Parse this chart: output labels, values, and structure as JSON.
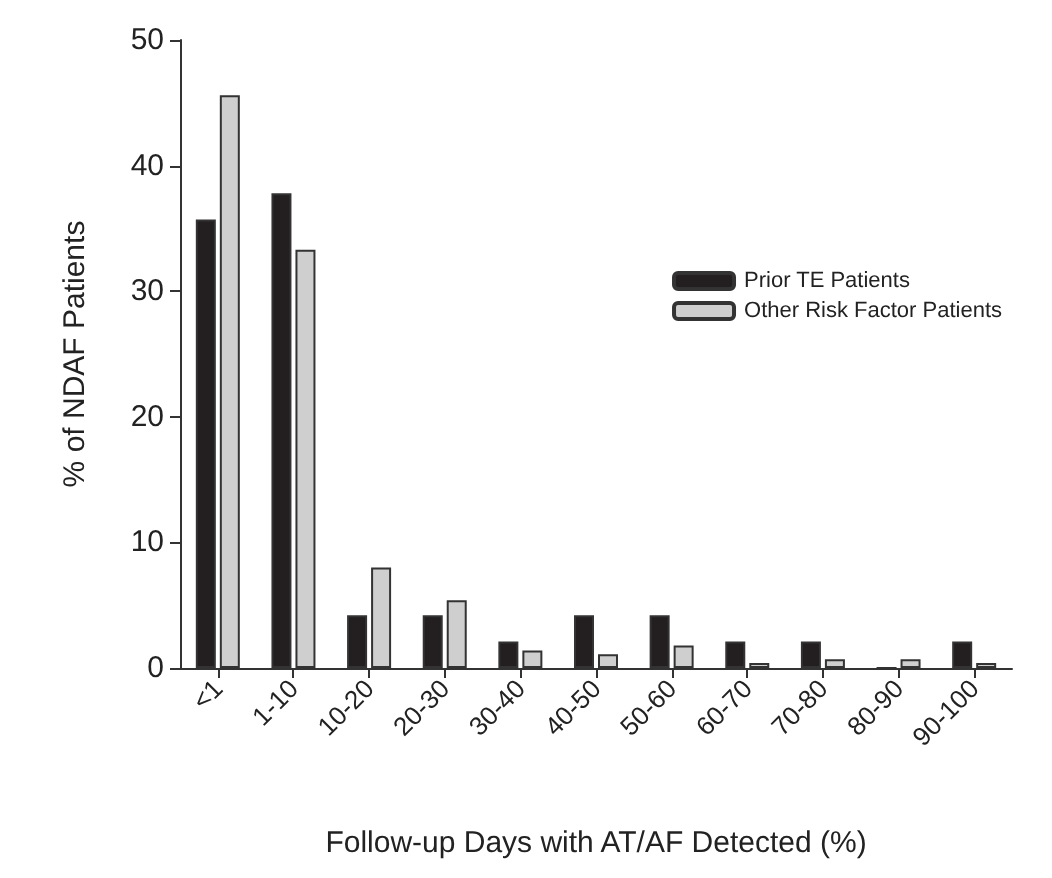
{
  "chart_data": {
    "type": "bar",
    "xlabel": "Follow-up Days with AT/AF Detected (%)",
    "ylabel": "% of NDAF Patients",
    "categories": [
      "<1",
      "1-10",
      "10-20",
      "20-30",
      "30-40",
      "40-50",
      "50-60",
      "60-70",
      "70-80",
      "80-90",
      "90-100"
    ],
    "series": [
      {
        "name": "Prior TE Patients",
        "color": "#231f20",
        "values": [
          35.7,
          37.8,
          4.2,
          4.2,
          2.1,
          4.2,
          4.2,
          2.1,
          2.1,
          0,
          2.1
        ]
      },
      {
        "name": "Other Risk Factor Patients",
        "color": "#cfcfcf",
        "values": [
          45.6,
          33.3,
          8.0,
          5.4,
          1.4,
          1.1,
          1.8,
          0.4,
          0.7,
          0.7,
          0.4
        ]
      }
    ],
    "ylim": [
      0,
      50
    ],
    "yticks": [
      0,
      10,
      20,
      30,
      40,
      50
    ],
    "grid": false,
    "legend": "top right"
  }
}
